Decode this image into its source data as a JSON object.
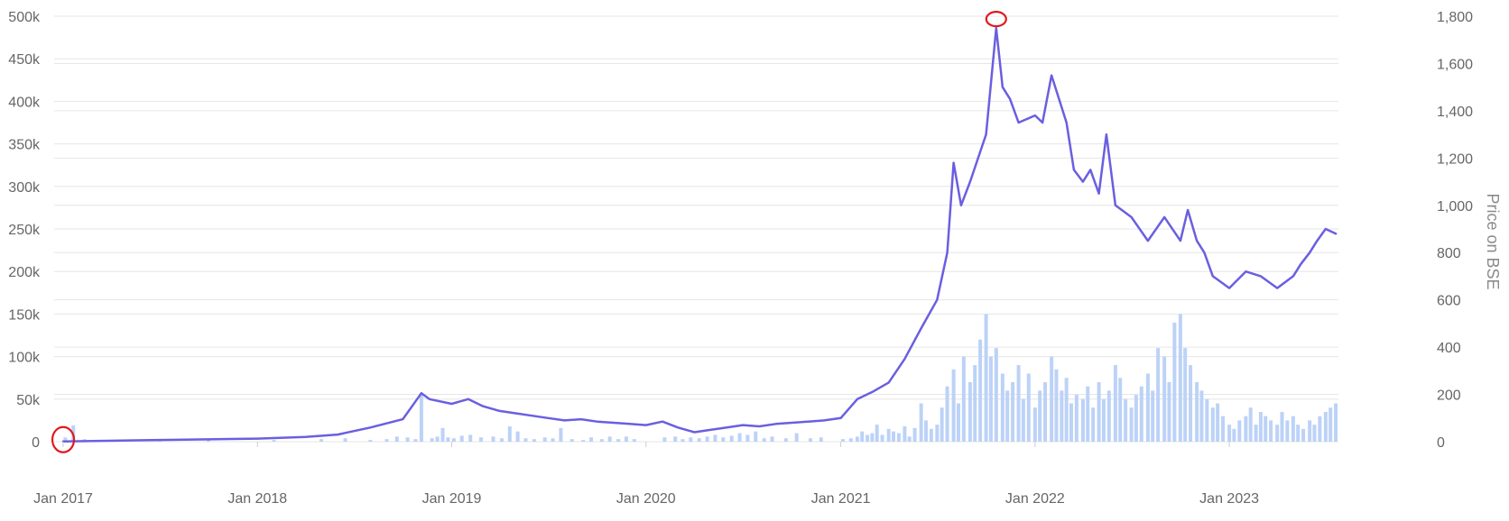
{
  "chart_data": {
    "type": "bar+line",
    "title": "",
    "xlabel": "",
    "ylabel_left": "",
    "ylabel_right": "Price on BSE",
    "x_range": [
      "2016-12-15",
      "2023-07-25"
    ],
    "x_ticks": [
      {
        "date": "2017-01-01",
        "label": "Jan 2017"
      },
      {
        "date": "2018-01-01",
        "label": "Jan 2018"
      },
      {
        "date": "2019-01-01",
        "label": "Jan 2019"
      },
      {
        "date": "2020-01-01",
        "label": "Jan 2020"
      },
      {
        "date": "2021-01-01",
        "label": "Jan 2021"
      },
      {
        "date": "2022-01-01",
        "label": "Jan 2022"
      },
      {
        "date": "2023-01-01",
        "label": "Jan 2023"
      }
    ],
    "left_axis": {
      "range": [
        0,
        500000
      ],
      "ticks": [
        {
          "value": 0,
          "label": "0"
        },
        {
          "value": 50000,
          "label": "50k"
        },
        {
          "value": 100000,
          "label": "100k"
        },
        {
          "value": 150000,
          "label": "150k"
        },
        {
          "value": 200000,
          "label": "200k"
        },
        {
          "value": 250000,
          "label": "250k"
        },
        {
          "value": 300000,
          "label": "300k"
        },
        {
          "value": 350000,
          "label": "350k"
        },
        {
          "value": 400000,
          "label": "400k"
        },
        {
          "value": 450000,
          "label": "450k"
        },
        {
          "value": 500000,
          "label": "500k"
        }
      ]
    },
    "right_axis": {
      "range": [
        0,
        1800
      ],
      "ticks": [
        {
          "value": 0,
          "label": "0"
        },
        {
          "value": 200,
          "label": "200"
        },
        {
          "value": 400,
          "label": "400"
        },
        {
          "value": 600,
          "label": "600"
        },
        {
          "value": 800,
          "label": "800"
        },
        {
          "value": 1000,
          "label": "1,000"
        },
        {
          "value": 1200,
          "label": "1,200"
        },
        {
          "value": 1400,
          "label": "1,400"
        },
        {
          "value": 1600,
          "label": "1,600"
        },
        {
          "value": 1800,
          "label": "1,800"
        }
      ]
    },
    "grid": true,
    "colors": {
      "bars": "#bcd2f7",
      "line": "#6a5fe0",
      "highlight": "#e0191f",
      "grid": "#e6e6e6"
    },
    "series": [
      {
        "kind": "bar",
        "axis": "left",
        "points": [
          [
            "2017-01-05",
            5000
          ],
          [
            "2017-01-20",
            19000
          ],
          [
            "2017-02-10",
            3000
          ],
          [
            "2017-04-01",
            1500
          ],
          [
            "2017-07-01",
            1500
          ],
          [
            "2017-10-01",
            2000
          ],
          [
            "2018-02-01",
            2000
          ],
          [
            "2018-05-01",
            3000
          ],
          [
            "2018-06-15",
            4000
          ],
          [
            "2018-08-01",
            2000
          ],
          [
            "2018-09-01",
            3000
          ],
          [
            "2018-09-20",
            6000
          ],
          [
            "2018-10-10",
            5000
          ],
          [
            "2018-10-25",
            3000
          ],
          [
            "2018-11-05",
            57000
          ],
          [
            "2018-11-25",
            4000
          ],
          [
            "2018-12-05",
            6000
          ],
          [
            "2018-12-15",
            16000
          ],
          [
            "2018-12-25",
            5000
          ],
          [
            "2019-01-05",
            4000
          ],
          [
            "2019-01-20",
            7000
          ],
          [
            "2019-02-05",
            8000
          ],
          [
            "2019-02-25",
            5000
          ],
          [
            "2019-03-20",
            6000
          ],
          [
            "2019-04-05",
            4000
          ],
          [
            "2019-04-20",
            18000
          ],
          [
            "2019-05-05",
            12000
          ],
          [
            "2019-05-20",
            4000
          ],
          [
            "2019-06-05",
            3000
          ],
          [
            "2019-06-25",
            5000
          ],
          [
            "2019-07-10",
            4000
          ],
          [
            "2019-07-25",
            16000
          ],
          [
            "2019-08-15",
            3000
          ],
          [
            "2019-09-05",
            2000
          ],
          [
            "2019-09-20",
            5000
          ],
          [
            "2019-10-10",
            3000
          ],
          [
            "2019-10-25",
            6000
          ],
          [
            "2019-11-10",
            3000
          ],
          [
            "2019-11-25",
            6000
          ],
          [
            "2019-12-10",
            3000
          ],
          [
            "2020-02-05",
            5000
          ],
          [
            "2020-02-25",
            6000
          ],
          [
            "2020-03-10",
            3000
          ],
          [
            "2020-03-25",
            5000
          ],
          [
            "2020-04-10",
            4000
          ],
          [
            "2020-04-25",
            6000
          ],
          [
            "2020-05-10",
            8000
          ],
          [
            "2020-05-25",
            5000
          ],
          [
            "2020-06-10",
            7000
          ],
          [
            "2020-06-25",
            10000
          ],
          [
            "2020-07-10",
            8000
          ],
          [
            "2020-07-25",
            12000
          ],
          [
            "2020-08-10",
            4000
          ],
          [
            "2020-08-25",
            6000
          ],
          [
            "2020-09-20",
            4000
          ],
          [
            "2020-10-10",
            10000
          ],
          [
            "2020-11-05",
            4000
          ],
          [
            "2020-11-25",
            5000
          ],
          [
            "2021-01-05",
            3000
          ],
          [
            "2021-01-20",
            4000
          ],
          [
            "2021-02-01",
            6000
          ],
          [
            "2021-02-10",
            12000
          ],
          [
            "2021-02-20",
            8000
          ],
          [
            "2021-03-01",
            10000
          ],
          [
            "2021-03-10",
            20000
          ],
          [
            "2021-03-20",
            8000
          ],
          [
            "2021-04-01",
            15000
          ],
          [
            "2021-04-10",
            12000
          ],
          [
            "2021-04-20",
            10000
          ],
          [
            "2021-05-01",
            18000
          ],
          [
            "2021-05-10",
            6000
          ],
          [
            "2021-05-20",
            16000
          ],
          [
            "2021-06-01",
            45000
          ],
          [
            "2021-06-10",
            25000
          ],
          [
            "2021-06-20",
            15000
          ],
          [
            "2021-07-01",
            20000
          ],
          [
            "2021-07-10",
            40000
          ],
          [
            "2021-07-20",
            65000
          ],
          [
            "2021-08-01",
            85000
          ],
          [
            "2021-08-10",
            45000
          ],
          [
            "2021-08-20",
            100000
          ],
          [
            "2021-09-01",
            70000
          ],
          [
            "2021-09-10",
            90000
          ],
          [
            "2021-09-20",
            120000
          ],
          [
            "2021-10-01",
            150000
          ],
          [
            "2021-10-10",
            100000
          ],
          [
            "2021-10-20",
            110000
          ],
          [
            "2021-11-01",
            80000
          ],
          [
            "2021-11-10",
            60000
          ],
          [
            "2021-11-20",
            70000
          ],
          [
            "2021-12-01",
            90000
          ],
          [
            "2021-12-10",
            50000
          ],
          [
            "2021-12-20",
            80000
          ],
          [
            "2022-01-01",
            40000
          ],
          [
            "2022-01-10",
            60000
          ],
          [
            "2022-01-20",
            70000
          ],
          [
            "2022-02-01",
            100000
          ],
          [
            "2022-02-10",
            85000
          ],
          [
            "2022-02-20",
            60000
          ],
          [
            "2022-03-01",
            75000
          ],
          [
            "2022-03-10",
            45000
          ],
          [
            "2022-03-20",
            55000
          ],
          [
            "2022-04-01",
            50000
          ],
          [
            "2022-04-10",
            65000
          ],
          [
            "2022-04-20",
            40000
          ],
          [
            "2022-05-01",
            70000
          ],
          [
            "2022-05-10",
            50000
          ],
          [
            "2022-05-20",
            60000
          ],
          [
            "2022-06-01",
            90000
          ],
          [
            "2022-06-10",
            75000
          ],
          [
            "2022-06-20",
            50000
          ],
          [
            "2022-07-01",
            40000
          ],
          [
            "2022-07-10",
            55000
          ],
          [
            "2022-07-20",
            65000
          ],
          [
            "2022-08-01",
            80000
          ],
          [
            "2022-08-10",
            60000
          ],
          [
            "2022-08-20",
            110000
          ],
          [
            "2022-09-01",
            100000
          ],
          [
            "2022-09-10",
            70000
          ],
          [
            "2022-09-20",
            140000
          ],
          [
            "2022-10-01",
            150000
          ],
          [
            "2022-10-10",
            110000
          ],
          [
            "2022-10-20",
            90000
          ],
          [
            "2022-11-01",
            70000
          ],
          [
            "2022-11-10",
            60000
          ],
          [
            "2022-11-20",
            50000
          ],
          [
            "2022-12-01",
            40000
          ],
          [
            "2022-12-10",
            45000
          ],
          [
            "2022-12-20",
            30000
          ],
          [
            "2023-01-01",
            20000
          ],
          [
            "2023-01-10",
            15000
          ],
          [
            "2023-01-20",
            25000
          ],
          [
            "2023-02-01",
            30000
          ],
          [
            "2023-02-10",
            40000
          ],
          [
            "2023-02-20",
            20000
          ],
          [
            "2023-03-01",
            35000
          ],
          [
            "2023-03-10",
            30000
          ],
          [
            "2023-03-20",
            25000
          ],
          [
            "2023-04-01",
            20000
          ],
          [
            "2023-04-10",
            35000
          ],
          [
            "2023-04-20",
            25000
          ],
          [
            "2023-05-01",
            30000
          ],
          [
            "2023-05-10",
            20000
          ],
          [
            "2023-05-20",
            15000
          ],
          [
            "2023-06-01",
            25000
          ],
          [
            "2023-06-10",
            20000
          ],
          [
            "2023-06-20",
            30000
          ],
          [
            "2023-07-01",
            35000
          ],
          [
            "2023-07-10",
            40000
          ],
          [
            "2023-07-20",
            45000
          ]
        ]
      },
      {
        "kind": "line",
        "axis": "right",
        "points": [
          [
            "2017-01-01",
            1
          ],
          [
            "2017-06-01",
            6
          ],
          [
            "2017-10-01",
            10
          ],
          [
            "2018-01-01",
            13
          ],
          [
            "2018-04-01",
            20
          ],
          [
            "2018-06-01",
            30
          ],
          [
            "2018-08-01",
            60
          ],
          [
            "2018-10-01",
            95
          ],
          [
            "2018-11-05",
            205
          ],
          [
            "2018-11-20",
            180
          ],
          [
            "2019-01-01",
            160
          ],
          [
            "2019-02-01",
            180
          ],
          [
            "2019-03-01",
            150
          ],
          [
            "2019-04-01",
            130
          ],
          [
            "2019-05-01",
            120
          ],
          [
            "2019-06-01",
            110
          ],
          [
            "2019-07-01",
            100
          ],
          [
            "2019-08-01",
            90
          ],
          [
            "2019-09-01",
            95
          ],
          [
            "2019-10-01",
            85
          ],
          [
            "2019-11-01",
            80
          ],
          [
            "2019-12-01",
            75
          ],
          [
            "2020-01-01",
            70
          ],
          [
            "2020-02-01",
            85
          ],
          [
            "2020-03-01",
            60
          ],
          [
            "2020-04-01",
            40
          ],
          [
            "2020-05-01",
            50
          ],
          [
            "2020-06-01",
            60
          ],
          [
            "2020-07-01",
            70
          ],
          [
            "2020-08-01",
            65
          ],
          [
            "2020-09-01",
            75
          ],
          [
            "2020-10-01",
            80
          ],
          [
            "2020-11-01",
            85
          ],
          [
            "2020-12-01",
            90
          ],
          [
            "2021-01-01",
            100
          ],
          [
            "2021-02-01",
            180
          ],
          [
            "2021-03-01",
            210
          ],
          [
            "2021-04-01",
            250
          ],
          [
            "2021-05-01",
            350
          ],
          [
            "2021-06-01",
            480
          ],
          [
            "2021-07-01",
            600
          ],
          [
            "2021-07-20",
            800
          ],
          [
            "2021-08-01",
            1180
          ],
          [
            "2021-08-15",
            1000
          ],
          [
            "2021-09-01",
            1100
          ],
          [
            "2021-10-01",
            1300
          ],
          [
            "2021-10-20",
            1750
          ],
          [
            "2021-11-01",
            1500
          ],
          [
            "2021-11-15",
            1450
          ],
          [
            "2021-12-01",
            1350
          ],
          [
            "2022-01-01",
            1380
          ],
          [
            "2022-01-15",
            1350
          ],
          [
            "2022-02-01",
            1550
          ],
          [
            "2022-02-15",
            1450
          ],
          [
            "2022-03-01",
            1350
          ],
          [
            "2022-03-15",
            1150
          ],
          [
            "2022-04-01",
            1100
          ],
          [
            "2022-04-15",
            1150
          ],
          [
            "2022-05-01",
            1050
          ],
          [
            "2022-05-15",
            1300
          ],
          [
            "2022-06-01",
            1000
          ],
          [
            "2022-07-01",
            950
          ],
          [
            "2022-08-01",
            850
          ],
          [
            "2022-09-01",
            950
          ],
          [
            "2022-10-01",
            850
          ],
          [
            "2022-10-15",
            980
          ],
          [
            "2022-11-01",
            850
          ],
          [
            "2022-11-15",
            800
          ],
          [
            "2022-12-01",
            700
          ],
          [
            "2023-01-01",
            650
          ],
          [
            "2023-02-01",
            720
          ],
          [
            "2023-03-01",
            700
          ],
          [
            "2023-04-01",
            650
          ],
          [
            "2023-05-01",
            700
          ],
          [
            "2023-05-15",
            750
          ],
          [
            "2023-06-01",
            800
          ],
          [
            "2023-06-15",
            850
          ],
          [
            "2023-07-01",
            900
          ],
          [
            "2023-07-20",
            880
          ]
        ]
      }
    ]
  }
}
